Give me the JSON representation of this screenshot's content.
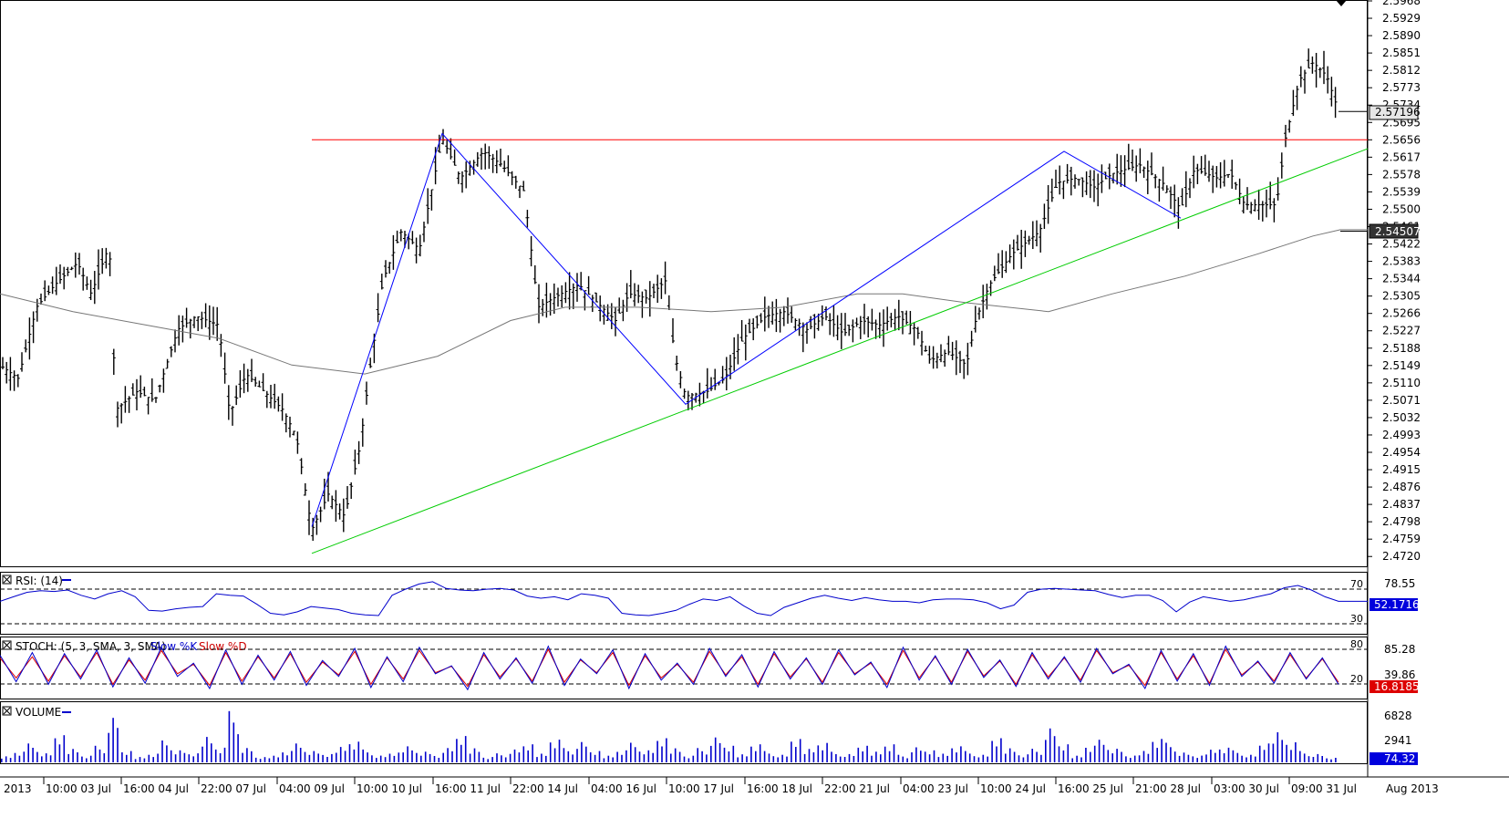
{
  "chart_data": [
    {
      "type": "ohlc",
      "panel": "price",
      "y_ticks": [
        "2.5968",
        "2.5929",
        "2.5890",
        "2.5851",
        "2.5812",
        "2.5773",
        "2.5734",
        "2.5695",
        "2.5656",
        "2.5617",
        "2.5578",
        "2.5539",
        "2.5500",
        "2.5461",
        "2.5422",
        "2.5383",
        "2.5344",
        "2.5305",
        "2.5266",
        "2.5227",
        "2.5188",
        "2.5149",
        "2.5110",
        "2.5071",
        "2.5032",
        "2.4993",
        "2.4954",
        "2.4915",
        "2.4876",
        "2.4837",
        "2.4798",
        "2.4759",
        "2.4720"
      ],
      "ylim": [
        2.47,
        2.5968
      ],
      "price_marker": "2.57196",
      "ma_marker": "2.54507",
      "price_path": [
        [
          0,
          2.515
        ],
        [
          20,
          2.512
        ],
        [
          40,
          2.528
        ],
        [
          60,
          2.533
        ],
        [
          85,
          2.538
        ],
        [
          100,
          2.531
        ],
        [
          120,
          2.542
        ],
        [
          127,
          2.505
        ],
        [
          150,
          2.509
        ],
        [
          170,
          2.507
        ],
        [
          195,
          2.523
        ],
        [
          215,
          2.526
        ],
        [
          240,
          2.524
        ],
        [
          252,
          2.504
        ],
        [
          270,
          2.513
        ],
        [
          290,
          2.509
        ],
        [
          310,
          2.505
        ],
        [
          325,
          2.499
        ],
        [
          342,
          2.478
        ],
        [
          360,
          2.486
        ],
        [
          378,
          2.481
        ],
        [
          395,
          2.497
        ],
        [
          405,
          2.513
        ],
        [
          420,
          2.534
        ],
        [
          440,
          2.545
        ],
        [
          460,
          2.541
        ],
        [
          485,
          2.566
        ],
        [
          505,
          2.557
        ],
        [
          530,
          2.563
        ],
        [
          550,
          2.56
        ],
        [
          575,
          2.554
        ],
        [
          590,
          2.528
        ],
        [
          615,
          2.531
        ],
        [
          635,
          2.533
        ],
        [
          655,
          2.529
        ],
        [
          675,
          2.525
        ],
        [
          690,
          2.531
        ],
        [
          710,
          2.53
        ],
        [
          730,
          2.534
        ],
        [
          740,
          2.517
        ],
        [
          752,
          2.508
        ],
        [
          775,
          2.509
        ],
        [
          795,
          2.512
        ],
        [
          815,
          2.521
        ],
        [
          840,
          2.526
        ],
        [
          860,
          2.527
        ],
        [
          885,
          2.523
        ],
        [
          905,
          2.526
        ],
        [
          925,
          2.522
        ],
        [
          945,
          2.525
        ],
        [
          965,
          2.524
        ],
        [
          985,
          2.526
        ],
        [
          1005,
          2.523
        ],
        [
          1020,
          2.516
        ],
        [
          1040,
          2.518
        ],
        [
          1060,
          2.515
        ],
        [
          1070,
          2.525
        ],
        [
          1085,
          2.533
        ],
        [
          1110,
          2.54
        ],
        [
          1140,
          2.545
        ],
        [
          1160,
          2.556
        ],
        [
          1180,
          2.557
        ],
        [
          1200,
          2.555
        ],
        [
          1220,
          2.558
        ],
        [
          1250,
          2.56
        ],
        [
          1275,
          2.556
        ],
        [
          1295,
          2.55
        ],
        [
          1310,
          2.559
        ],
        [
          1335,
          2.557
        ],
        [
          1350,
          2.558
        ],
        [
          1365,
          2.551
        ],
        [
          1385,
          2.551
        ],
        [
          1400,
          2.551
        ],
        [
          1410,
          2.566
        ],
        [
          1425,
          2.579
        ],
        [
          1440,
          2.583
        ],
        [
          1455,
          2.58
        ],
        [
          1468,
          2.572
        ]
      ],
      "ma_path": [
        [
          0,
          2.531
        ],
        [
          80,
          2.527
        ],
        [
          160,
          2.524
        ],
        [
          240,
          2.521
        ],
        [
          320,
          2.515
        ],
        [
          400,
          2.513
        ],
        [
          480,
          2.517
        ],
        [
          560,
          2.525
        ],
        [
          620,
          2.528
        ],
        [
          700,
          2.528
        ],
        [
          780,
          2.527
        ],
        [
          860,
          2.528
        ],
        [
          940,
          2.531
        ],
        [
          990,
          2.531
        ],
        [
          1060,
          2.529
        ],
        [
          1150,
          2.527
        ],
        [
          1220,
          2.531
        ],
        [
          1300,
          2.535
        ],
        [
          1380,
          2.54
        ],
        [
          1440,
          2.544
        ],
        [
          1470,
          2.5454
        ],
        [
          1500,
          2.5454
        ]
      ],
      "resistance": {
        "x1": 342,
        "x2": 1500,
        "y": 2.5656
      },
      "support": {
        "x1": 342,
        "y1": 2.4727,
        "x2": 1500,
        "y2": 2.5636
      },
      "zigzag": [
        [
          342,
          2.4787
        ],
        [
          485,
          2.567
        ],
        [
          752,
          2.5062
        ],
        [
          1167,
          2.563
        ],
        [
          1295,
          2.548
        ]
      ]
    },
    {
      "type": "line",
      "panel": "rsi",
      "title": "RSI: (14)",
      "levels": [
        "70",
        "30"
      ],
      "y_ticks": [
        "78.55"
      ],
      "marker": "52.17168",
      "series": [
        {
          "color": "#0000cc",
          "values": [
            52,
            58,
            64,
            66,
            65,
            67,
            60,
            55,
            62,
            66,
            58,
            40,
            39,
            42,
            44,
            45,
            62,
            60,
            59,
            48,
            36,
            34,
            38,
            45,
            43,
            41,
            36,
            34,
            33,
            60,
            68,
            75,
            78,
            69,
            67,
            66,
            68,
            69,
            67,
            59,
            56,
            58,
            54,
            62,
            60,
            56,
            36,
            34,
            33,
            36,
            40,
            48,
            55,
            53,
            58,
            46,
            36,
            33,
            44,
            50,
            56,
            60,
            56,
            53,
            57,
            54,
            52,
            52,
            50,
            54,
            55,
            55,
            54,
            50,
            42,
            47,
            64,
            68,
            69,
            68,
            67,
            66,
            61,
            57,
            60,
            60,
            53,
            38,
            51,
            58,
            55,
            52,
            54,
            58,
            62,
            70,
            73,
            67,
            58,
            52
          ]
        }
      ]
    },
    {
      "type": "line",
      "panel": "stoch",
      "title": "STOCH: (5, 3, SMA, 3, SMA)",
      "series_names": [
        "Slow %K",
        "Slow %D"
      ],
      "levels": [
        "80",
        "20"
      ],
      "y_ticks": [
        "85.28",
        "39.86"
      ],
      "marker": "16.81851",
      "series": [
        {
          "name": "Slow %K",
          "color": "#0000cc",
          "values": [
            75,
            25,
            80,
            20,
            78,
            30,
            85,
            15,
            70,
            22,
            90,
            35,
            60,
            12,
            85,
            20,
            75,
            28,
            82,
            18,
            65,
            35,
            88,
            14,
            72,
            25,
            90,
            40,
            55,
            10,
            80,
            30,
            70,
            22,
            92,
            18,
            68,
            40,
            85,
            12,
            78,
            28,
            60,
            20,
            88,
            35,
            76,
            15,
            82,
            30,
            70,
            20,
            85,
            38,
            62,
            14,
            90,
            28,
            74,
            20,
            86,
            33,
            66,
            16,
            80,
            30,
            72,
            24,
            88,
            40,
            58,
            12,
            84,
            26,
            78,
            18,
            92,
            35,
            64,
            22,
            80,
            30,
            70,
            20
          ]
        },
        {
          "name": "Slow %D",
          "color": "#cc0000",
          "values": [
            70,
            32,
            72,
            26,
            74,
            34,
            80,
            20,
            66,
            28,
            84,
            40,
            58,
            18,
            80,
            26,
            72,
            32,
            78,
            24,
            62,
            38,
            82,
            20,
            70,
            30,
            84,
            42,
            54,
            16,
            76,
            34,
            68,
            26,
            86,
            24,
            66,
            42,
            80,
            18,
            74,
            32,
            58,
            24,
            82,
            38,
            72,
            20,
            78,
            34,
            68,
            24,
            80,
            40,
            60,
            20,
            84,
            32,
            72,
            24,
            82,
            36,
            64,
            20,
            76,
            34,
            70,
            28,
            84,
            42,
            56,
            18,
            80,
            30,
            74,
            22,
            86,
            38,
            62,
            26,
            76,
            32,
            68,
            24
          ]
        }
      ]
    },
    {
      "type": "bar",
      "panel": "volume",
      "title": "VOLUME",
      "y_ticks": [
        "6828",
        "2941"
      ],
      "marker": "74.32",
      "values": [
        900,
        1600,
        2500,
        1200,
        3600,
        2000,
        1000,
        2200,
        5900,
        1500,
        800,
        1300,
        2900,
        1600,
        1200,
        3800,
        2200,
        6800,
        1900,
        700,
        1000,
        1700,
        2500,
        1500,
        1100,
        2300,
        3100,
        1700,
        900,
        1300,
        2400,
        1600,
        1100,
        1900,
        3500,
        2100,
        800,
        1200,
        1700,
        2400,
        1300,
        3400,
        1900,
        2700,
        1500,
        1000,
        1800,
        2600,
        1600,
        3200,
        2100,
        1000,
        1900,
        3300,
        2200,
        1200,
        2700,
        1500,
        1000,
        3100,
        2000,
        2900,
        1400,
        1100,
        2200,
        1600,
        2700,
        1000,
        2000,
        1600,
        1300,
        2400,
        1500,
        1000,
        3200,
        2100,
        1200,
        1800,
        4500,
        2400,
        1000,
        2500,
        3000,
        1800,
        900,
        1700,
        3500,
        2600,
        1300,
        900,
        1900,
        2200,
        1600,
        1000,
        2500,
        4500,
        3000,
        1500,
        1100,
        600
      ]
    }
  ],
  "x_axis": {
    "labels": [
      "2013",
      "10:00 03 Jul",
      "16:00 04 Jul",
      "22:00 07 Jul",
      "04:00 09 Jul",
      "10:00 10 Jul",
      "16:00 11 Jul",
      "22:00 14 Jul",
      "04:00 16 Jul",
      "10:00 17 Jul",
      "16:00 18 Jul",
      "22:00 21 Jul",
      "04:00 23 Jul",
      "10:00 24 Jul",
      "16:00 25 Jul",
      "21:00 28 Jul",
      "03:00 30 Jul",
      "09:00 31 Jul",
      "Aug 2013"
    ]
  }
}
